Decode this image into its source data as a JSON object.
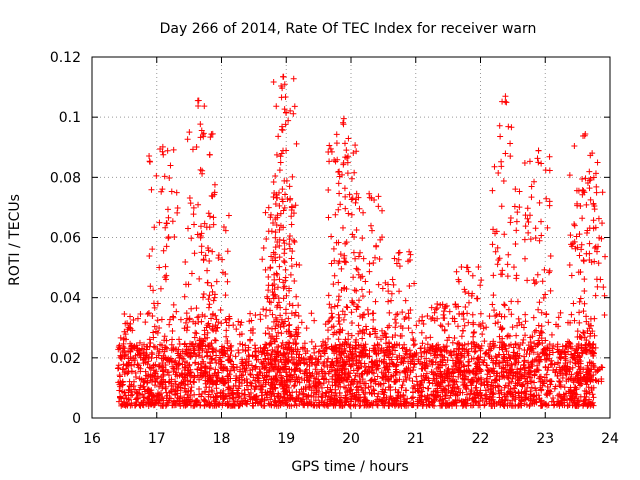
{
  "chart_data": {
    "type": "scatter",
    "title": "Day 266 of 2014, Rate Of TEC Index for receiver warn",
    "xlabel": "GPS time / hours",
    "ylabel": "ROTI / TECUs",
    "xlim": [
      16,
      24
    ],
    "ylim": [
      0,
      0.12
    ],
    "xticks": [
      16,
      17,
      18,
      19,
      20,
      21,
      22,
      23,
      24
    ],
    "yticks": [
      0,
      0.02,
      0.04,
      0.06,
      0.08,
      0.1,
      0.12
    ],
    "xtick_labels": [
      "16",
      "17",
      "18",
      "19",
      "20",
      "21",
      "22",
      "23",
      "24"
    ],
    "ytick_labels": [
      "0",
      "0.02",
      "0.04",
      "0.06",
      "0.08",
      "0.1",
      "0.12"
    ],
    "grid": true,
    "marker": "+",
    "color": "#ff0000",
    "x_range": [
      16.4,
      23.75
    ],
    "baseline_band": [
      0.004,
      0.025
    ],
    "peaks": [
      {
        "x": 17.1,
        "y": 0.091
      },
      {
        "x": 17.65,
        "y": 0.107
      },
      {
        "x": 17.9,
        "y": 0.078
      },
      {
        "x": 18.85,
        "y": 0.075
      },
      {
        "x": 18.97,
        "y": 0.114
      },
      {
        "x": 18.98,
        "y": 0.103
      },
      {
        "x": 19.87,
        "y": 0.1
      },
      {
        "x": 19.9,
        "y": 0.088
      },
      {
        "x": 20.3,
        "y": 0.077
      },
      {
        "x": 20.75,
        "y": 0.056
      },
      {
        "x": 21.45,
        "y": 0.039
      },
      {
        "x": 21.8,
        "y": 0.052
      },
      {
        "x": 22.4,
        "y": 0.107
      },
      {
        "x": 22.9,
        "y": 0.09
      },
      {
        "x": 23.6,
        "y": 0.096
      },
      {
        "x": 23.7,
        "y": 0.082
      }
    ]
  }
}
